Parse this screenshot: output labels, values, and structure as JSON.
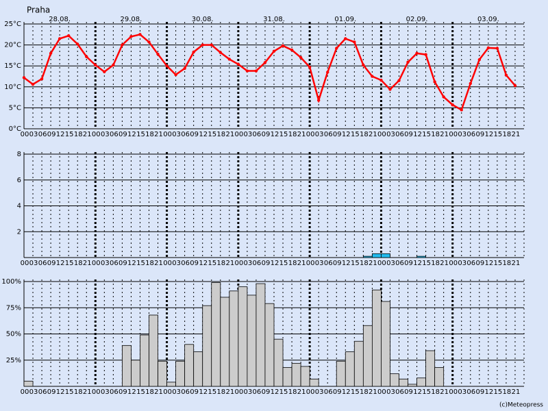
{
  "location": "Praha",
  "credit": "(c)Meteopress",
  "chart_data": [
    {
      "type": "line",
      "color": "#ff0000",
      "day_labels": [
        "28.08.",
        "29.08.",
        "30.08.",
        "31.08.",
        "01.09.",
        "02.09.",
        "03.09."
      ],
      "categories": [
        "00",
        "03",
        "06",
        "09",
        "12",
        "15",
        "18",
        "21",
        "00",
        "03",
        "06",
        "09",
        "12",
        "15",
        "18",
        "21",
        "00",
        "03",
        "06",
        "09",
        "12",
        "15",
        "18",
        "21",
        "00",
        "03",
        "06",
        "09",
        "12",
        "15",
        "18",
        "21",
        "00",
        "03",
        "06",
        "09",
        "12",
        "15",
        "18",
        "21",
        "00",
        "03",
        "06",
        "09",
        "12",
        "15",
        "18",
        "21",
        "00",
        "03",
        "06",
        "09",
        "12",
        "15",
        "18",
        "21"
      ],
      "values": [
        12.2,
        10.6,
        11.9,
        18,
        21.5,
        22.2,
        20.2,
        17.2,
        15.2,
        13.6,
        15.2,
        20,
        22,
        22.5,
        20.7,
        17.8,
        15,
        12.9,
        14.4,
        18.3,
        20,
        20,
        18.2,
        16.6,
        15.4,
        13.8,
        13.8,
        15.8,
        18.5,
        19.8,
        18.8,
        17,
        14.7,
        6.8,
        13.5,
        19.2,
        21.5,
        20.7,
        15.2,
        12.5,
        11.6,
        9.4,
        11.5,
        15.9,
        18,
        17.7,
        11.2,
        7.6,
        5.7,
        4.5,
        10.8,
        16.5,
        19.3,
        19.2,
        12.8,
        10.3
      ],
      "ylim": [
        0,
        25
      ],
      "yticks": [
        {
          "value": 0,
          "label": "0°C"
        },
        {
          "value": 5,
          "label": "5°C"
        },
        {
          "value": 10,
          "label": "10°C"
        },
        {
          "value": 15,
          "label": "15°C"
        },
        {
          "value": 20,
          "label": "20°C"
        },
        {
          "value": 25,
          "label": "25°C"
        }
      ]
    },
    {
      "type": "bar",
      "color": "#22bbee",
      "categories": [
        "00",
        "03",
        "06",
        "09",
        "12",
        "15",
        "18",
        "21",
        "00",
        "03",
        "06",
        "09",
        "12",
        "15",
        "18",
        "21",
        "00",
        "03",
        "06",
        "09",
        "12",
        "15",
        "18",
        "21",
        "00",
        "03",
        "06",
        "09",
        "12",
        "15",
        "18",
        "21",
        "00",
        "03",
        "06",
        "09",
        "12",
        "15",
        "18",
        "21",
        "00",
        "03",
        "06",
        "09",
        "12",
        "15",
        "18",
        "21",
        "00",
        "03",
        "06",
        "09",
        "12",
        "15",
        "18",
        "21"
      ],
      "values": [
        0,
        0,
        0,
        0,
        0,
        0,
        0,
        0,
        0,
        0,
        0,
        0,
        0,
        0,
        0,
        0,
        0,
        0,
        0,
        0,
        0,
        0,
        0,
        0,
        0,
        0,
        0,
        0,
        0,
        0,
        0,
        0,
        0,
        0,
        0,
        0,
        0,
        0,
        0.1,
        0.3,
        0.3,
        0,
        0,
        0,
        0.1,
        0,
        0,
        0,
        0,
        0,
        0,
        0,
        0,
        0,
        0,
        0
      ],
      "ylim": [
        0,
        8
      ],
      "yticks": [
        2,
        4,
        6,
        8
      ]
    },
    {
      "type": "bar",
      "color": "#cccccc",
      "categories": [
        "00",
        "03",
        "06",
        "09",
        "12",
        "15",
        "18",
        "21",
        "00",
        "03",
        "06",
        "09",
        "12",
        "15",
        "18",
        "21",
        "00",
        "03",
        "06",
        "09",
        "12",
        "15",
        "18",
        "21",
        "00",
        "03",
        "06",
        "09",
        "12",
        "15",
        "18",
        "21",
        "00",
        "03",
        "06",
        "09",
        "12",
        "15",
        "18",
        "21",
        "00",
        "03",
        "06",
        "09",
        "12",
        "15",
        "18",
        "21",
        "00",
        "03",
        "06",
        "09",
        "12",
        "15",
        "18",
        "21"
      ],
      "values": [
        5,
        0,
        0,
        0,
        0,
        0,
        0,
        0,
        0,
        0,
        0,
        39,
        25,
        49,
        68,
        24,
        4,
        24,
        40,
        33,
        77,
        99,
        85,
        91,
        95,
        87,
        98,
        79,
        45,
        18,
        22,
        19,
        7,
        0,
        0,
        24,
        33,
        43,
        58,
        92,
        81,
        12,
        7,
        2,
        8,
        34,
        18,
        0,
        0,
        0,
        0,
        0,
        0,
        0,
        0,
        0
      ],
      "ylim": [
        0,
        100
      ],
      "yticks": [
        {
          "value": 25,
          "label": "25%"
        },
        {
          "value": 50,
          "label": "50%"
        },
        {
          "value": 75,
          "label": "75%"
        },
        {
          "value": 100,
          "label": "100%"
        }
      ]
    }
  ]
}
